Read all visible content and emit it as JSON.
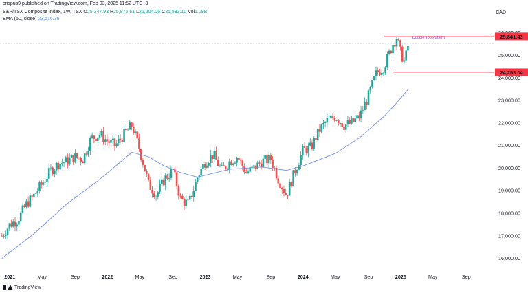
{
  "header": {
    "publish_line": "crispus9 published on TradingView.com, Feb 03, 2025 11:52 UTC+3",
    "symbol": "S&P/TSX Composite Index, 1W, TSX",
    "ohlc": {
      "o_label": "O",
      "o_value": "25,347.93",
      "h_label": "H",
      "h_value": "25,875.61",
      "l_label": "L",
      "l_value": "25,204.06",
      "c_label": "C",
      "c_value": "25,533.10",
      "vol_label": "Vol",
      "vol_value": "1.09B"
    },
    "ema_label": "EMA (50, close)",
    "ema_value": "23,516.36",
    "currency": "CAD"
  },
  "footer": {
    "brand": "TradingView"
  },
  "colors": {
    "up": "#26a69a",
    "down": "#ef5350",
    "ema": "#6f8fe8",
    "level": "#f23645",
    "annotation": "#9c27b0"
  },
  "chart_data": {
    "type": "candlestick",
    "title": "S&P/TSX Composite Index, 1W, TSX",
    "x_tick_labels": [
      "2021",
      "May",
      "Sep",
      "2022",
      "May",
      "Sep",
      "2023",
      "May",
      "Sep",
      "2024",
      "May",
      "Sep",
      "2025",
      "May",
      "Sep"
    ],
    "x_ticks": [
      2021.0,
      2021.33,
      2021.67,
      2022.0,
      2022.33,
      2022.67,
      2023.0,
      2023.33,
      2023.67,
      2024.0,
      2024.33,
      2024.67,
      2025.0,
      2025.33,
      2025.67
    ],
    "y_tick_labels": [
      "16,000.00",
      "17,000.00",
      "18,000.00",
      "19,000.00",
      "20,000.00",
      "21,000.00",
      "22,000.00",
      "23,000.00",
      "24,000.00",
      "25,000.00",
      "26,000.00"
    ],
    "y_ticks": [
      16000,
      17000,
      18000,
      19000,
      20000,
      21000,
      22000,
      23000,
      24000,
      25000,
      26000
    ],
    "ylim": [
      15500,
      26600
    ],
    "xlim": [
      2020.9,
      2025.95
    ],
    "price_points": [
      [
        2020.92,
        17000
      ],
      [
        2021.0,
        17500
      ],
      [
        2021.08,
        17700
      ],
      [
        2021.17,
        18400
      ],
      [
        2021.25,
        18800
      ],
      [
        2021.33,
        19300
      ],
      [
        2021.42,
        19900
      ],
      [
        2021.5,
        20200
      ],
      [
        2021.58,
        20300
      ],
      [
        2021.67,
        20500
      ],
      [
        2021.75,
        20400
      ],
      [
        2021.83,
        21300
      ],
      [
        2021.92,
        21500
      ],
      [
        2022.0,
        21200
      ],
      [
        2022.08,
        21000
      ],
      [
        2022.17,
        21500
      ],
      [
        2022.25,
        21900
      ],
      [
        2022.33,
        20800
      ],
      [
        2022.42,
        19300
      ],
      [
        2022.5,
        18800
      ],
      [
        2022.58,
        19500
      ],
      [
        2022.67,
        19900
      ],
      [
        2022.75,
        18600
      ],
      [
        2022.83,
        18400
      ],
      [
        2022.92,
        19600
      ],
      [
        2023.0,
        20300
      ],
      [
        2023.08,
        20600
      ],
      [
        2023.17,
        19900
      ],
      [
        2023.25,
        20300
      ],
      [
        2023.33,
        20500
      ],
      [
        2023.42,
        19800
      ],
      [
        2023.5,
        20000
      ],
      [
        2023.58,
        20300
      ],
      [
        2023.67,
        20400
      ],
      [
        2023.75,
        19500
      ],
      [
        2023.83,
        18800
      ],
      [
        2023.92,
        19900
      ],
      [
        2024.0,
        20800
      ],
      [
        2024.08,
        20900
      ],
      [
        2024.17,
        21700
      ],
      [
        2024.25,
        22100
      ],
      [
        2024.33,
        22300
      ],
      [
        2024.42,
        21900
      ],
      [
        2024.5,
        22000
      ],
      [
        2024.58,
        22300
      ],
      [
        2024.67,
        23200
      ],
      [
        2024.75,
        24200
      ],
      [
        2024.83,
        24500
      ],
      [
        2024.92,
        25500
      ],
      [
        2024.96,
        25800
      ],
      [
        2025.0,
        25100
      ],
      [
        2025.04,
        24700
      ],
      [
        2025.08,
        25533
      ]
    ],
    "ema_points": [
      [
        2020.92,
        16000
      ],
      [
        2021.25,
        17100
      ],
      [
        2021.58,
        18400
      ],
      [
        2021.92,
        19500
      ],
      [
        2022.25,
        20700
      ],
      [
        2022.42,
        20500
      ],
      [
        2022.58,
        20100
      ],
      [
        2022.75,
        19800
      ],
      [
        2022.92,
        19600
      ],
      [
        2023.25,
        19950
      ],
      [
        2023.58,
        20050
      ],
      [
        2023.83,
        19900
      ],
      [
        2024.0,
        20100
      ],
      [
        2024.33,
        20650
      ],
      [
        2024.58,
        21350
      ],
      [
        2024.83,
        22300
      ],
      [
        2024.96,
        22900
      ],
      [
        2025.08,
        23516
      ]
    ],
    "levels": [
      {
        "name": "resistance",
        "label": "25,841.43",
        "value": 25841.43
      },
      {
        "name": "support",
        "label": "24,253.04",
        "value": 24253.04
      }
    ],
    "current_price": 25533.1,
    "annotations": [
      {
        "text": "Double Top Pattern",
        "x": 2025.12,
        "y": 25841.43
      }
    ],
    "ema_last": 23516.36
  }
}
